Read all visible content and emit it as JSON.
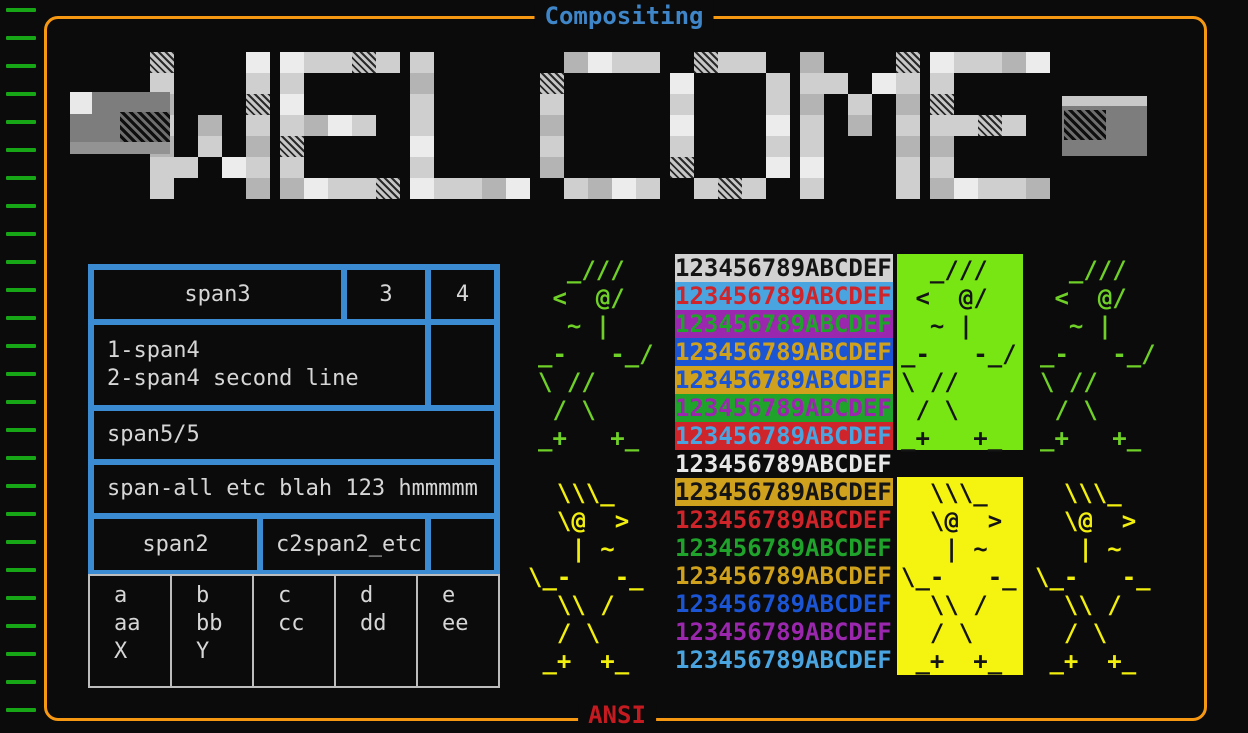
{
  "window": {
    "title": "Compositing",
    "footer": "ANSI",
    "title_color": "#3f86c9",
    "footer_color": "#c51a1f",
    "frame_color": "#f79812"
  },
  "left_ticks": {
    "count": 26,
    "color": "#16a616",
    "glyph": "-"
  },
  "banner": {
    "text": "WELCOME"
  },
  "layout_table": {
    "border_color": "#3a8bd2",
    "rows": [
      {
        "cells": [
          {
            "label": "span3",
            "span": 2,
            "align": "center"
          },
          {
            "label": "3",
            "span": 1,
            "align": "center"
          },
          {
            "label": "4",
            "span": 1,
            "align": "center"
          }
        ]
      },
      {
        "cells": [
          {
            "label": "1-span4\n2-span4 second line",
            "span": 3,
            "align": "left"
          },
          {
            "label": "",
            "span": 1,
            "align": "left"
          }
        ]
      },
      {
        "cells": [
          {
            "label": "span5/5",
            "span": 4,
            "align": "left"
          }
        ]
      },
      {
        "cells": [
          {
            "label": "span-all etc blah 123 hmmmmm",
            "span": 4,
            "align": "left"
          }
        ]
      },
      {
        "cells": [
          {
            "label": "span2",
            "span": 1,
            "align": "center"
          },
          {
            "label": "c2span2_etc",
            "span": 2,
            "align": "left"
          },
          {
            "label": "",
            "span": 1,
            "align": "left"
          }
        ]
      }
    ]
  },
  "grid_table": {
    "border_color": "#bdbdbd",
    "columns": [
      "a\naa\nX",
      "b\nbb\nY",
      "c\ncc",
      "d\ndd",
      "e\nee"
    ]
  },
  "palette": {
    "black": "#141414",
    "silver": "#d2d2d2",
    "white": "#e8e8e8",
    "red": "#cf2429",
    "green": "#1fa32b",
    "gold": "#cfa11c",
    "blue": "#1c55d4",
    "purple": "#9b27ae",
    "sky": "#4aa4e0",
    "none": "transparent"
  },
  "ansi_rows": {
    "text": "123456789ABCDEF",
    "rows": [
      {
        "fg": "black",
        "bg": "silver"
      },
      {
        "fg": "red",
        "bg": "sky"
      },
      {
        "fg": "green",
        "bg": "purple"
      },
      {
        "fg": "gold",
        "bg": "blue"
      },
      {
        "fg": "blue",
        "bg": "gold"
      },
      {
        "fg": "purple",
        "bg": "green"
      },
      {
        "fg": "sky",
        "bg": "red"
      },
      {
        "fg": "white",
        "bg": "none"
      },
      {
        "fg": "black",
        "bg": "gold"
      },
      {
        "fg": "red",
        "bg": "none"
      },
      {
        "fg": "green",
        "bg": "none"
      },
      {
        "fg": "gold",
        "bg": "none"
      },
      {
        "fg": "blue",
        "bg": "none"
      },
      {
        "fg": "purple",
        "bg": "none"
      },
      {
        "fg": "sky",
        "bg": "none"
      }
    ]
  },
  "figures": {
    "dancer_right": [
      "  _///",
      " <  @/",
      "  ~ |",
      "_-   -_/",
      "\\ //",
      " / \\",
      "_+   +_"
    ],
    "dancer_left": [
      "  \\\\\\_",
      "  \\@  >",
      "   | ~",
      "\\_-   -_",
      "  \\\\ /",
      "  / \\",
      " _+  +_"
    ],
    "green_stroke": "#6fd028",
    "yellow_stroke": "#f2ef0e",
    "green_box_bg": "#78e613",
    "yellow_box_bg": "#f4f410",
    "box_art_color": "#141414"
  }
}
